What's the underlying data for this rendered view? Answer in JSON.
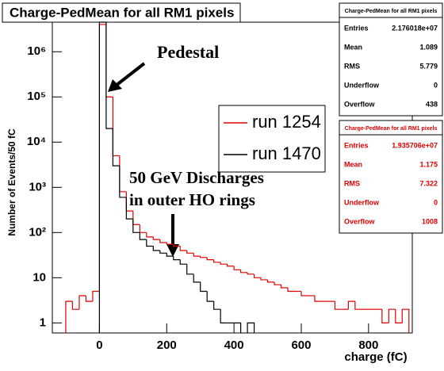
{
  "chart_data": {
    "type": "histogram",
    "title": "Charge-PedMean for all RM1 pixels",
    "x_label": "charge (fC)",
    "y_label": "Number of Events/50 fC",
    "log_y": true,
    "bins": [
      -100,
      -80,
      -60,
      -40,
      -20,
      0,
      20,
      40,
      60,
      80,
      100,
      120,
      140,
      160,
      180,
      200,
      220,
      240,
      260,
      280,
      300,
      320,
      340,
      360,
      380,
      400,
      420,
      440,
      460,
      480,
      500,
      520,
      540,
      560,
      580,
      600,
      620,
      640,
      660,
      680,
      700,
      720,
      740,
      760,
      780,
      800,
      820,
      840,
      860,
      880,
      900,
      920
    ],
    "series": [
      {
        "name": "run 1254",
        "color": "#e00000",
        "values": [
          3,
          2,
          4,
          3,
          5,
          4000000,
          100000,
          5000,
          800,
          300,
          150,
          100,
          80,
          70,
          60,
          55,
          50,
          40,
          35,
          30,
          28,
          25,
          22,
          20,
          18,
          15,
          13,
          12,
          10,
          9,
          8,
          7,
          6,
          5,
          5,
          4,
          4,
          3,
          3,
          3,
          2,
          2,
          3,
          2,
          2,
          2,
          2,
          1,
          2,
          1,
          2
        ]
      },
      {
        "name": "run 1470",
        "color": "#000000",
        "values": [
          null,
          null,
          null,
          null,
          null,
          4500000,
          20000,
          3000,
          600,
          200,
          100,
          70,
          50,
          40,
          35,
          30,
          25,
          20,
          12,
          8,
          5,
          3,
          2,
          1,
          1,
          1,
          null,
          1,
          null,
          null,
          null,
          null,
          null,
          null,
          null,
          null,
          null,
          null,
          null,
          null,
          null,
          null,
          null,
          null,
          null,
          null,
          null,
          null,
          null,
          null,
          null
        ]
      }
    ],
    "xlim": [
      -140,
      930
    ],
    "ylim": [
      0.6,
      4500000
    ],
    "xticks": [
      0,
      200,
      400,
      600,
      800
    ],
    "yticks": [
      1,
      10,
      {
        "value": 100,
        "label": "10²"
      },
      {
        "value": 1000,
        "label": "10³"
      },
      {
        "value": 10000,
        "label": "10⁴"
      },
      {
        "value": 100000,
        "label": "10⁵"
      },
      {
        "value": 1000000,
        "label": "10⁶"
      }
    ],
    "annotations": [
      {
        "lines": [
          "Pedestal"
        ]
      },
      {
        "lines": [
          "50 GeV Discharges",
          "in outer HO rings"
        ]
      }
    ],
    "stats": [
      {
        "title": "Charge-PedMean for all RM1 pixels",
        "color": "#000000",
        "rows": [
          [
            "Entries",
            "2.176018e+07"
          ],
          [
            "Mean",
            "1.089"
          ],
          [
            "RMS",
            "5.779"
          ],
          [
            "Underflow",
            "0"
          ],
          [
            "Overflow",
            "438"
          ]
        ]
      },
      {
        "title": "Charge-PedMean for all RM1 pixels",
        "color": "#e00000",
        "rows": [
          [
            "Entries",
            "1.935706e+07"
          ],
          [
            "Mean",
            "1.175"
          ],
          [
            "RMS",
            "7.322"
          ],
          [
            "Underflow",
            "0"
          ],
          [
            "Overflow",
            "1008"
          ]
        ]
      }
    ]
  }
}
